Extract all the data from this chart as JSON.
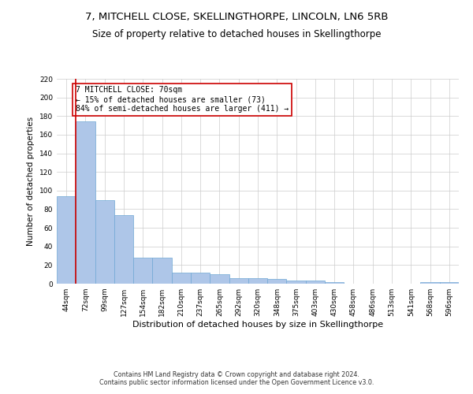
{
  "title": "7, MITCHELL CLOSE, SKELLINGTHORPE, LINCOLN, LN6 5RB",
  "subtitle": "Size of property relative to detached houses in Skellingthorpe",
  "xlabel": "Distribution of detached houses by size in Skellingthorpe",
  "ylabel": "Number of detached properties",
  "categories": [
    "44sqm",
    "72sqm",
    "99sqm",
    "127sqm",
    "154sqm",
    "182sqm",
    "210sqm",
    "237sqm",
    "265sqm",
    "292sqm",
    "320sqm",
    "348sqm",
    "375sqm",
    "403sqm",
    "430sqm",
    "458sqm",
    "486sqm",
    "513sqm",
    "541sqm",
    "568sqm",
    "596sqm"
  ],
  "values": [
    94,
    174,
    90,
    74,
    28,
    28,
    12,
    12,
    10,
    6,
    6,
    5,
    3,
    3,
    2,
    0,
    0,
    0,
    0,
    2,
    2
  ],
  "bar_color": "#aec6e8",
  "bar_edge_color": "#6fa8d4",
  "highlight_line_color": "#cc0000",
  "annotation_text": "7 MITCHELL CLOSE: 70sqm\n← 15% of detached houses are smaller (73)\n84% of semi-detached houses are larger (411) →",
  "annotation_box_color": "#cc0000",
  "ylim": [
    0,
    220
  ],
  "yticks": [
    0,
    20,
    40,
    60,
    80,
    100,
    120,
    140,
    160,
    180,
    200,
    220
  ],
  "grid_color": "#cccccc",
  "background_color": "#ffffff",
  "footer_text": "Contains HM Land Registry data © Crown copyright and database right 2024.\nContains public sector information licensed under the Open Government Licence v3.0.",
  "title_fontsize": 9.5,
  "subtitle_fontsize": 8.5,
  "xlabel_fontsize": 8,
  "ylabel_fontsize": 7.5,
  "tick_fontsize": 6.5,
  "annotation_fontsize": 7.0,
  "footer_fontsize": 5.8
}
